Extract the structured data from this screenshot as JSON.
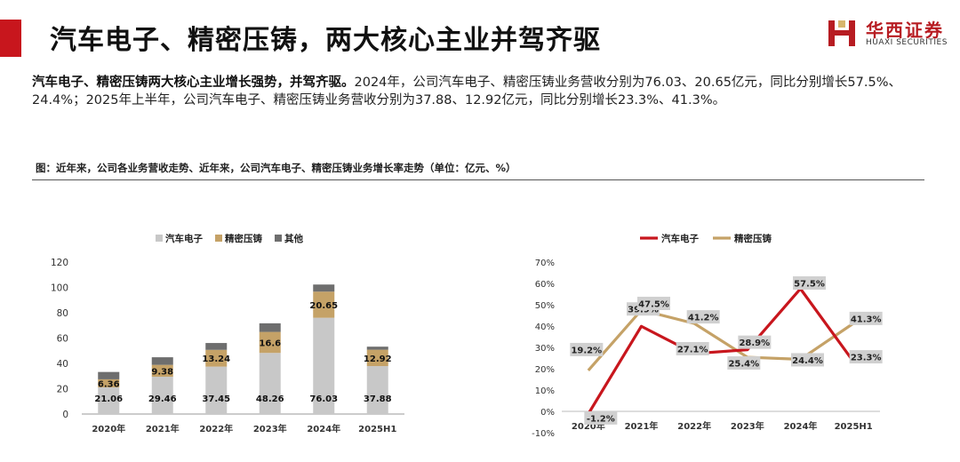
{
  "header": {
    "title": "汽车电子、精密压铸，两大核心主业并驾齐驱",
    "logo_cn": "华西证券",
    "logo_en": "HUAXI SECURITIES",
    "brand_color": "#c8161d"
  },
  "description": {
    "bold": "汽车电子、精密压铸两大核心主业增长强势，并驾齐驱。",
    "text": "2024年，公司汽车电子、精密压铸业务营收分别为76.03、20.65亿元，同比分别增长57.5%、24.4%；2025年上半年，公司汽车电子、精密压铸业务营收分别为37.88、12.92亿元，同比分别增长23.3%、41.3%。"
  },
  "figure": {
    "caption": "图：近年来，公司各业务营收走势、近年来，公司汽车电子、精密压铸业务增长率走势（单位：亿元、%）"
  },
  "chart_data": [
    {
      "type": "bar",
      "stacked": true,
      "categories": [
        "2020年",
        "2021年",
        "2022年",
        "2023年",
        "2024年",
        "2025H1"
      ],
      "series": [
        {
          "name": "汽车电子",
          "values": [
            21.06,
            29.46,
            37.45,
            48.26,
            76.03,
            37.88
          ],
          "color": "#c8c8c8",
          "labels": [
            "21.06",
            "29.46",
            "37.45",
            "48.26",
            "76.03",
            "37.88"
          ]
        },
        {
          "name": "精密压铸",
          "values": [
            6.36,
            9.38,
            13.24,
            16.6,
            20.65,
            12.92
          ],
          "color": "#c5a267",
          "labels": [
            "6.36",
            "9.38",
            "13.24",
            "16.6",
            "20.65",
            "12.92"
          ]
        },
        {
          "name": "其他",
          "values": [
            5.8,
            6.0,
            5.4,
            6.8,
            5.6,
            2.4
          ],
          "color": "#6e6e6e"
        }
      ],
      "ylim": [
        0,
        120
      ],
      "yticks": [
        "0",
        "20",
        "40",
        "60",
        "80",
        "100",
        "120"
      ],
      "legend": "top-center"
    },
    {
      "type": "line",
      "categories": [
        "2020年",
        "2021年",
        "2022年",
        "2023年",
        "2024年",
        "2025H1"
      ],
      "series": [
        {
          "name": "汽车电子",
          "values": [
            -1.2,
            39.9,
            27.1,
            28.9,
            57.5,
            23.3
          ],
          "color": "#c8161d",
          "labels": [
            "-1.2%",
            "39.9%",
            "27.1%",
            "28.9%",
            "57.5%",
            "23.3%"
          ]
        },
        {
          "name": "精密压铸",
          "values": [
            19.2,
            47.5,
            41.2,
            25.4,
            24.4,
            41.3
          ],
          "color": "#c5a267",
          "labels": [
            "19.2%",
            "47.5%",
            "41.2%",
            "25.4%",
            "24.4%",
            "41.3%"
          ]
        }
      ],
      "ylim": [
        -10,
        70
      ],
      "yticks": [
        "-10%",
        "0%",
        "10%",
        "20%",
        "30%",
        "40%",
        "50%",
        "60%",
        "70%"
      ],
      "legend": "top-center"
    }
  ]
}
